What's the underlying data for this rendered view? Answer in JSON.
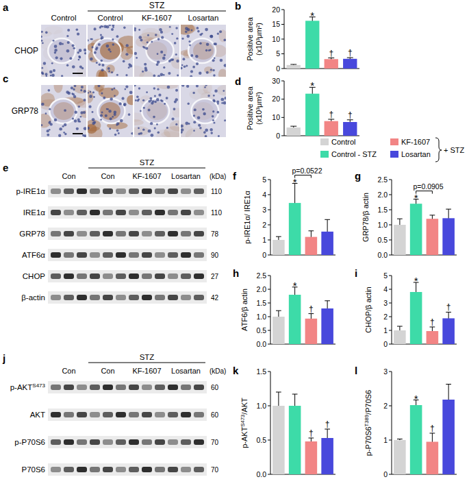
{
  "micrographs": {
    "panels": [
      "a",
      "c"
    ],
    "header": "STZ",
    "columns": [
      "Control",
      "Control",
      "KF-1607",
      "Losartan"
    ],
    "rows": [
      "CHOP",
      "GRP78"
    ]
  },
  "legend": {
    "names": [
      "Control",
      "Control - STZ",
      "KF-1607",
      "Losartan"
    ],
    "colors": [
      "#d4d4d4",
      "#3ddba8",
      "#f28585",
      "#4848dc"
    ],
    "group_label": "+ STZ"
  },
  "blots": [
    {
      "panel": "e",
      "header": "STZ",
      "lane_groups": [
        "Con",
        "Con",
        "KF-1607",
        "Losartan"
      ],
      "unit": "(kDa)",
      "rows": [
        {
          "label": [
            "p-IRE1α"
          ],
          "kda": 110
        },
        {
          "label": [
            "IRE1α"
          ],
          "kda": 110
        },
        {
          "label": [
            "GRP78"
          ],
          "kda": 78
        },
        {
          "label": [
            "ATF6α"
          ],
          "kda": 90
        },
        {
          "label": [
            "CHOP"
          ],
          "kda": 27
        },
        {
          "label": [
            "β-actin"
          ],
          "kda": 42
        }
      ]
    },
    {
      "panel": "j",
      "header": "STZ",
      "lane_groups": [
        "Con",
        "Con",
        "KF-1607",
        "Losartan"
      ],
      "unit": "(kDa)",
      "rows": [
        {
          "label": [
            "p-AKT",
            "S473"
          ],
          "kda": 60
        },
        {
          "label": [
            "AKT"
          ],
          "kda": 60
        },
        {
          "label": [
            "p-P70S6"
          ],
          "kda": 70
        },
        {
          "label": [
            "P70S6"
          ],
          "kda": 70
        }
      ]
    }
  ],
  "chart_data": [
    {
      "panel": "b",
      "type": "bar",
      "y_label": [
        [
          "Positive area"
        ],
        [
          "(x10³μm²)"
        ]
      ],
      "values": [
        1.2,
        16.2,
        3.2,
        3.3
      ],
      "errors": [
        0.2,
        1.3,
        0.4,
        0.4
      ],
      "colors": [
        "#d4d4d4",
        "#3ddba8",
        "#f28585",
        "#4848dc"
      ],
      "ylim": [
        0,
        20
      ],
      "yticks": [
        0,
        5,
        10,
        15,
        20
      ],
      "annotations": [
        {
          "text": "*",
          "index": 1
        },
        {
          "text": "†",
          "index": 2
        },
        {
          "text": "†",
          "index": 3
        }
      ]
    },
    {
      "panel": "d",
      "type": "bar",
      "y_label": [
        [
          "Positive area"
        ],
        [
          "(x10³μm²)"
        ]
      ],
      "values": [
        4.5,
        23,
        8,
        7.5
      ],
      "errors": [
        0.7,
        3.5,
        1.0,
        1.2
      ],
      "colors": [
        "#d4d4d4",
        "#3ddba8",
        "#f28585",
        "#4848dc"
      ],
      "ylim": [
        0,
        30
      ],
      "yticks": [
        0,
        10,
        20,
        30
      ],
      "annotations": [
        {
          "text": "*",
          "index": 1
        },
        {
          "text": "†",
          "index": 2
        },
        {
          "text": "†",
          "index": 3
        }
      ]
    },
    {
      "panel": "f",
      "type": "bar",
      "y_label": [
        [
          "p-IRE1α/ IRE1α"
        ]
      ],
      "values": [
        1.0,
        3.45,
        1.2,
        1.55
      ],
      "errors": [
        0.22,
        1.3,
        0.4,
        0.8
      ],
      "colors": [
        "#d4d4d4",
        "#3ddba8",
        "#f28585",
        "#4848dc"
      ],
      "ylim": [
        0,
        5
      ],
      "yticks": [
        0,
        1,
        2,
        3,
        4,
        5
      ],
      "annotations": [
        {
          "text": "*",
          "index": 1
        }
      ],
      "brackets": [
        {
          "text": "p=0.0522",
          "from": 1,
          "to": 2
        }
      ]
    },
    {
      "panel": "g",
      "type": "bar",
      "y_label": [
        [
          "GRP78/β actin"
        ]
      ],
      "values": [
        1.0,
        1.7,
        1.2,
        1.22
      ],
      "errors": [
        0.2,
        0.15,
        0.12,
        0.3
      ],
      "colors": [
        "#d4d4d4",
        "#3ddba8",
        "#f28585",
        "#4848dc"
      ],
      "ylim": [
        0,
        2.5
      ],
      "yticks": [
        {
          "value": 0,
          "label": "0.0"
        },
        0.5,
        {
          "value": 1,
          "label": "1.0"
        },
        1.5,
        {
          "value": 2,
          "label": "2.0"
        },
        2.5
      ],
      "annotations": [
        {
          "text": "*",
          "index": 1
        }
      ],
      "brackets": [
        {
          "text": "p=0.0905",
          "from": 1,
          "to": 2
        }
      ]
    },
    {
      "panel": "h",
      "type": "bar",
      "y_label": [
        [
          "ATF6/β actin"
        ]
      ],
      "values": [
        1.0,
        1.8,
        0.93,
        1.3
      ],
      "errors": [
        0.22,
        0.28,
        0.18,
        0.28
      ],
      "colors": [
        "#d4d4d4",
        "#3ddba8",
        "#f28585",
        "#4848dc"
      ],
      "ylim": [
        0,
        2.5
      ],
      "yticks": [
        {
          "value": 0,
          "label": "0.0"
        },
        0.5,
        {
          "value": 1,
          "label": "1.0"
        },
        1.5,
        {
          "value": 2,
          "label": "2.0"
        },
        2.5
      ],
      "annotations": [
        {
          "text": "*",
          "index": 1
        },
        {
          "text": "†",
          "index": 2
        }
      ]
    },
    {
      "panel": "i",
      "type": "bar",
      "y_label": [
        [
          "CHOP/β actin"
        ]
      ],
      "values": [
        1.0,
        3.8,
        0.95,
        1.88
      ],
      "errors": [
        0.3,
        0.7,
        0.3,
        0.45
      ],
      "colors": [
        "#d4d4d4",
        "#3ddba8",
        "#f28585",
        "#4848dc"
      ],
      "ylim": [
        0,
        5
      ],
      "yticks": [
        0,
        1,
        2,
        3,
        4,
        5
      ],
      "annotations": [
        {
          "text": "*",
          "index": 1
        },
        {
          "text": "†",
          "index": 2
        },
        {
          "text": "†",
          "index": 3
        }
      ]
    },
    {
      "panel": "k",
      "type": "bar",
      "y_label": [
        [
          "p-AKT",
          "S473",
          "/AKT"
        ]
      ],
      "values": [
        1.0,
        1.0,
        0.48,
        0.53
      ],
      "errors": [
        0.2,
        0.17,
        0.05,
        0.13
      ],
      "colors": [
        "#d4d4d4",
        "#3ddba8",
        "#f28585",
        "#4848dc"
      ],
      "ylim": [
        0,
        1.5
      ],
      "yticks": [
        {
          "value": 0,
          "label": "0.0"
        },
        0.5,
        {
          "value": 1,
          "label": "1.0"
        },
        1.5
      ],
      "annotations": [
        {
          "text": "†",
          "index": 2
        },
        {
          "text": "†",
          "index": 3
        }
      ]
    },
    {
      "panel": "l",
      "type": "bar",
      "y_label": [
        [
          "p-P70S6",
          "T389",
          "/P70S6"
        ]
      ],
      "values": [
        1.0,
        2.02,
        0.95,
        2.18
      ],
      "errors": [
        0.03,
        0.15,
        0.25,
        0.45
      ],
      "colors": [
        "#d4d4d4",
        "#3ddba8",
        "#f28585",
        "#4848dc"
      ],
      "ylim": [
        0,
        3
      ],
      "yticks": [
        0,
        1,
        2,
        3
      ],
      "annotations": [
        {
          "text": "*",
          "index": 1
        },
        {
          "text": "†",
          "index": 2
        }
      ]
    }
  ]
}
